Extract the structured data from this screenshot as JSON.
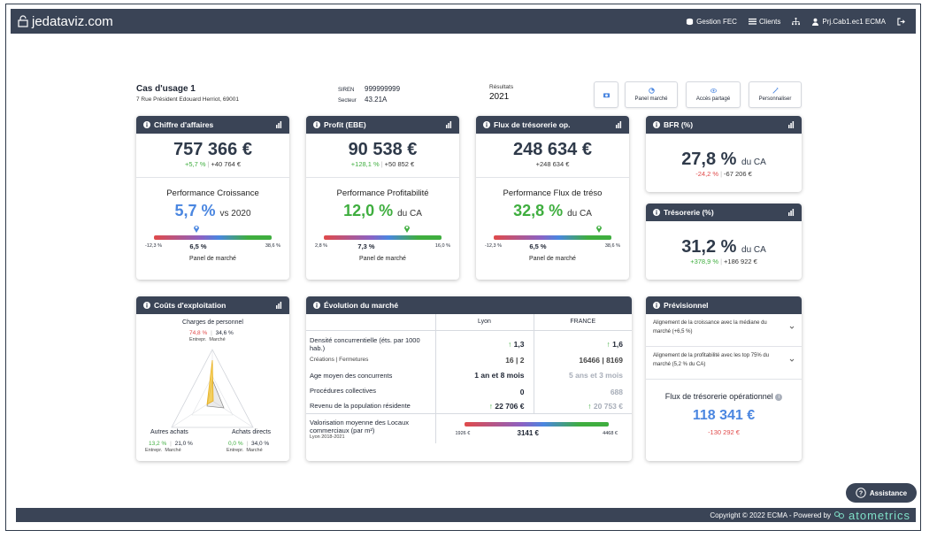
{
  "topbar": {
    "logo": "jedataviz.com",
    "nav": {
      "gestion": "Gestion FEC",
      "clients": "Clients",
      "account": "Prj.Cab1.ec1 ECMA"
    }
  },
  "header": {
    "title": "Cas d'usage 1",
    "address": "7 Rue Président Edouard Herriot, 69001",
    "siren_label": "SIREN",
    "siren_value": "999999999",
    "secteur_label": "Secteur",
    "secteur_value": "43.21A",
    "resultats_label": "Résultats",
    "resultats_year": "2021",
    "buttons": {
      "panel": "Panel marché",
      "acces": "Accès partagé",
      "perso": "Personnaliser"
    }
  },
  "cards": {
    "ca": {
      "title": "Chiffre d'affaires",
      "value": "757 366 €",
      "pct": "+5,7 %",
      "delta": "+40 764 €",
      "perf_title": "Performance Croissance",
      "perf_value": "5,7 %",
      "perf_unit": "vs 2020",
      "lo": "-12,3 %",
      "hi": "38,6 %",
      "med": "6,5 %",
      "panel": "Panel de marché"
    },
    "ebe": {
      "title": "Profit (EBE)",
      "value": "90 538 €",
      "pct": "+128,1 %",
      "delta": "+50 852 €",
      "perf_title": "Performance Profitabilité",
      "perf_value": "12,0 %",
      "perf_unit": "du CA",
      "lo": "2,8 %",
      "hi": "16,0 %",
      "med": "7,3 %",
      "panel": "Panel de marché"
    },
    "flux": {
      "title": "Flux de trésorerie op.",
      "value": "248 634 €",
      "delta": "+248 634 €",
      "perf_title": "Performance Flux de tréso",
      "perf_value": "32,8 %",
      "perf_unit": "du CA",
      "lo": "-12,3 %",
      "hi": "38,6 %",
      "med": "6,5 %",
      "panel": "Panel de marché"
    },
    "bfr": {
      "title": "BFR (%)",
      "value": "27,8 %",
      "unit": "du CA",
      "pct": "-24,2 %",
      "delta": "-67 206 €"
    },
    "treso": {
      "title": "Trésorerie (%)",
      "value": "31,2 %",
      "unit": "du CA",
      "pct": "+378,9 %",
      "delta": "+186 922 €"
    },
    "couts": {
      "title": "Coûts d'exploitation",
      "charges_label": "Charges de personnel",
      "charges_e": "74,8 %",
      "charges_m": "34,6 %",
      "autres_label": "Autres achats",
      "autres_e": "13,2 %",
      "autres_m": "21,0 %",
      "directs_label": "Achats directs",
      "directs_e": "0,0 %",
      "directs_m": "34,0 %",
      "entrepr": "Entrepr.",
      "marche": "Marché"
    },
    "marche": {
      "title": "Évolution du marché",
      "col1": "Lyon",
      "col2": "FRANCE",
      "r1_label": "Densité concurrentielle (éts. par 1000 hab.)",
      "r1_v1": "1,3",
      "r1_v2": "1,6",
      "r1b_label": "Créations | Fermetures",
      "r1b_v1": "16 | 2",
      "r1b_v2": "16466 | 8169",
      "r2_label": "Age moyen des concurrents",
      "r2_v1": "1 an et 8 mois",
      "r2_v2": "5 ans et 3 mois",
      "r3_label": "Procédures collectives",
      "r3_v1": "0",
      "r3_v2": "688",
      "r4_label": "Revenu de la population résidente",
      "r4_v1": "22 706 €",
      "r4_v2": "20 753 €",
      "r5_label": "Valorisation moyenne des Locaux commerciaux (par m²)",
      "r5_sub": "Lyon 2018-2021",
      "r5_lo": "1926 €",
      "r5_med": "3141 €",
      "r5_hi": "4468 €"
    },
    "prev": {
      "title": "Prévisionnel",
      "row1": "Alignement de la croissance avec la médiane du marché (+6,5 %)",
      "row2": "Alignement de la profitabilité avec les top 75% du marché (5,2 % du CA)",
      "flux_label": "Flux de trésorerie opérationnel",
      "flux_value": "118 341 €",
      "flux_delta": "-130 292 €"
    }
  },
  "footer": {
    "copyright": "Copyright © 2022 ECMA - Powered by",
    "brand": "atometrics"
  },
  "assist": "Assistance",
  "colors": {
    "header": "#3a4456",
    "blue": "#4a86e0",
    "green": "#3fae3f",
    "red": "#e04a4a",
    "gauge": "linear-gradient(90deg,#e04a4a,#8b62c4 40%,#4a86e0 55%,#3fae3f 80%)"
  }
}
